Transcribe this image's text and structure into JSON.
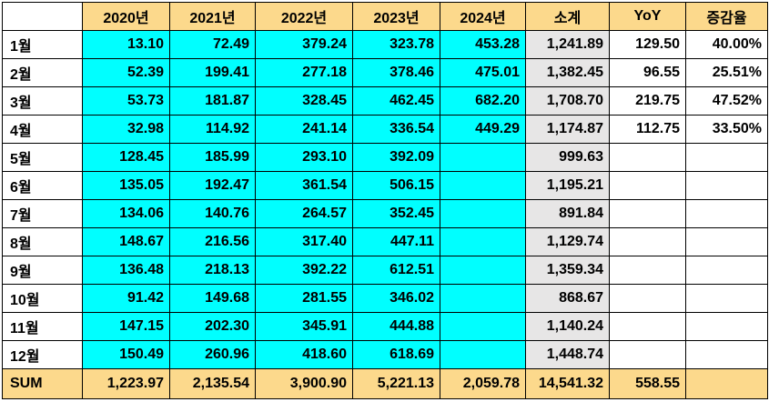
{
  "headers": {
    "corner": "",
    "y2020": "2020년",
    "y2021": "2021년",
    "y2022": "2022년",
    "y2023": "2023년",
    "y2024": "2024년",
    "subtotal": "소계",
    "yoy": "YoY",
    "rate": "증감율"
  },
  "rows": [
    {
      "month": "1월",
      "y2020": "13.10",
      "y2021": "72.49",
      "y2022": "379.24",
      "y2023": "323.78",
      "y2024": "453.28",
      "subtotal": "1,241.89",
      "yoy": "129.50",
      "rate": "40.00%"
    },
    {
      "month": "2월",
      "y2020": "52.39",
      "y2021": "199.41",
      "y2022": "277.18",
      "y2023": "378.46",
      "y2024": "475.01",
      "subtotal": "1,382.45",
      "yoy": "96.55",
      "rate": "25.51%"
    },
    {
      "month": "3월",
      "y2020": "53.73",
      "y2021": "181.87",
      "y2022": "328.45",
      "y2023": "462.45",
      "y2024": "682.20",
      "subtotal": "1,708.70",
      "yoy": "219.75",
      "rate": "47.52%"
    },
    {
      "month": "4월",
      "y2020": "32.98",
      "y2021": "114.92",
      "y2022": "241.14",
      "y2023": "336.54",
      "y2024": "449.29",
      "subtotal": "1,174.87",
      "yoy": "112.75",
      "rate": "33.50%"
    },
    {
      "month": "5월",
      "y2020": "128.45",
      "y2021": "185.99",
      "y2022": "293.10",
      "y2023": "392.09",
      "y2024": "",
      "subtotal": "999.63",
      "yoy": "",
      "rate": ""
    },
    {
      "month": "6월",
      "y2020": "135.05",
      "y2021": "192.47",
      "y2022": "361.54",
      "y2023": "506.15",
      "y2024": "",
      "subtotal": "1,195.21",
      "yoy": "",
      "rate": ""
    },
    {
      "month": "7월",
      "y2020": "134.06",
      "y2021": "140.76",
      "y2022": "264.57",
      "y2023": "352.45",
      "y2024": "",
      "subtotal": "891.84",
      "yoy": "",
      "rate": ""
    },
    {
      "month": "8월",
      "y2020": "148.67",
      "y2021": "216.56",
      "y2022": "317.40",
      "y2023": "447.11",
      "y2024": "",
      "subtotal": "1,129.74",
      "yoy": "",
      "rate": ""
    },
    {
      "month": "9월",
      "y2020": "136.48",
      "y2021": "218.13",
      "y2022": "392.22",
      "y2023": "612.51",
      "y2024": "",
      "subtotal": "1,359.34",
      "yoy": "",
      "rate": ""
    },
    {
      "month": "10월",
      "y2020": "91.42",
      "y2021": "149.68",
      "y2022": "281.55",
      "y2023": "346.02",
      "y2024": "",
      "subtotal": "868.67",
      "yoy": "",
      "rate": ""
    },
    {
      "month": "11월",
      "y2020": "147.15",
      "y2021": "202.30",
      "y2022": "345.91",
      "y2023": "444.88",
      "y2024": "",
      "subtotal": "1,140.24",
      "yoy": "",
      "rate": ""
    },
    {
      "month": "12월",
      "y2020": "150.49",
      "y2021": "260.96",
      "y2022": "418.60",
      "y2023": "618.69",
      "y2024": "",
      "subtotal": "1,448.74",
      "yoy": "",
      "rate": ""
    }
  ],
  "sum": {
    "label": "SUM",
    "y2020": "1,223.97",
    "y2021": "2,135.54",
    "y2022": "3,900.90",
    "y2023": "5,221.13",
    "y2024": "2,059.78",
    "subtotal": "14,541.32",
    "yoy": "558.55",
    "rate": ""
  },
  "colors": {
    "header_fill": "#fcd98c",
    "year_cells_fill": "#00ffff",
    "subtotal_fill": "#e7e6e6",
    "border": "#000000"
  }
}
